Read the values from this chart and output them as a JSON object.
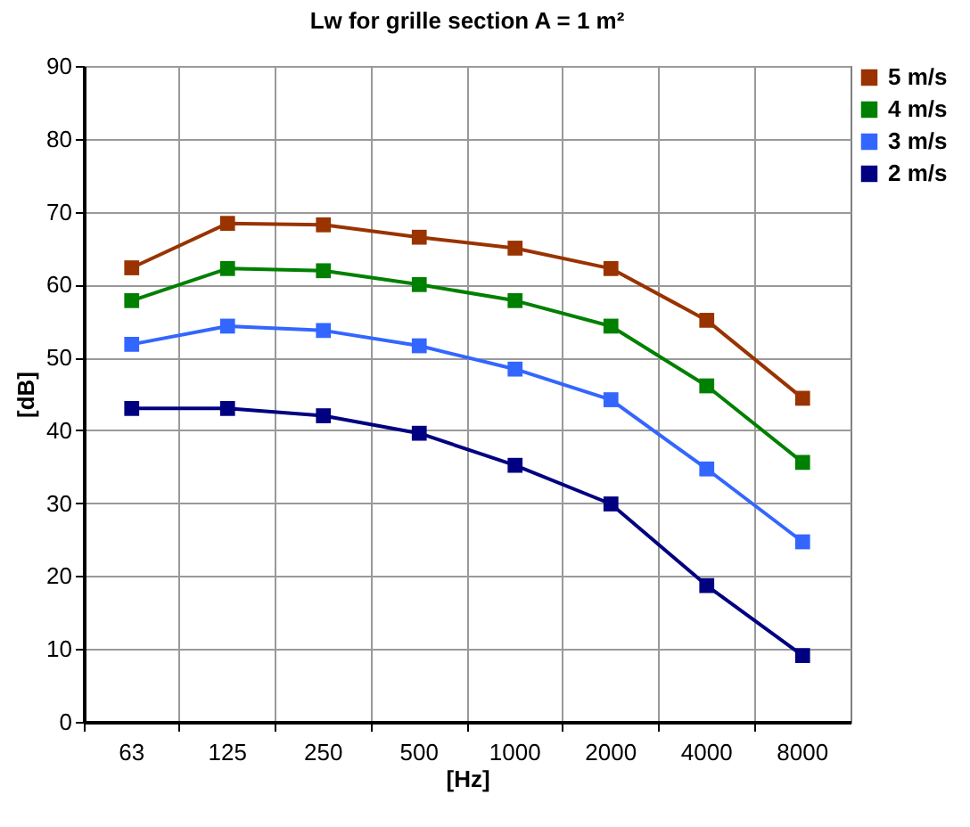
{
  "chart_data": {
    "type": "line",
    "title": "Lw for grille section A = 1 m²",
    "xlabel": "[Hz]",
    "ylabel": "[dB]",
    "categories": [
      "63",
      "125",
      "250",
      "500",
      "1000",
      "2000",
      "4000",
      "8000"
    ],
    "series": [
      {
        "name": "5 m/s",
        "color": "#993300",
        "values": [
          62.3,
          68.4,
          68.2,
          66.5,
          65.0,
          62.2,
          55.1,
          44.4
        ]
      },
      {
        "name": "4 m/s",
        "color": "#008000",
        "values": [
          57.8,
          62.2,
          61.9,
          60.0,
          57.8,
          54.3,
          46.1,
          35.6
        ]
      },
      {
        "name": "3 m/s",
        "color": "#3366ff",
        "values": [
          51.8,
          54.3,
          53.7,
          51.6,
          48.4,
          44.2,
          34.7,
          24.7
        ]
      },
      {
        "name": "2 m/s",
        "color": "#000080",
        "values": [
          43.0,
          43.0,
          42.0,
          39.6,
          35.2,
          29.9,
          18.7,
          9.1
        ]
      }
    ],
    "ylim": [
      0,
      90
    ],
    "yticks": [
      0,
      10,
      20,
      30,
      40,
      50,
      60,
      70,
      80,
      90
    ],
    "grid": true,
    "legend": "right",
    "marker": "square",
    "line_style": "solid"
  }
}
